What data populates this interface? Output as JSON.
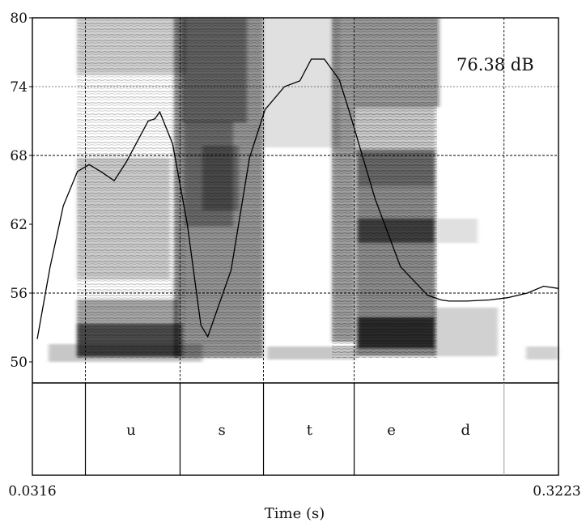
{
  "chart_data": {
    "type": "line",
    "series": [
      {
        "x": [
          0.0343,
          0.0413,
          0.0487,
          0.0565,
          0.063,
          0.0703,
          0.0768,
          0.0834,
          0.0885,
          0.0956,
          0.0993,
          0.102,
          0.1091,
          0.1172,
          0.1247,
          0.1285,
          0.1414,
          0.1516,
          0.1602,
          0.1709,
          0.1794,
          0.1857,
          0.1929,
          0.2012,
          0.2068,
          0.221,
          0.235,
          0.25,
          0.2575,
          0.2618,
          0.2715,
          0.284,
          0.2942,
          0.3051,
          0.3141,
          0.3223
        ],
        "values": [
          52.0,
          58.2,
          63.6,
          66.6,
          67.2,
          66.5,
          65.8,
          67.4,
          68.9,
          71.0,
          71.2,
          71.8,
          69.0,
          62.0,
          53.2,
          52.2,
          58.0,
          67.8,
          72.0,
          74.0,
          74.5,
          76.4,
          76.4,
          74.6,
          71.8,
          64.2,
          58.3,
          55.8,
          55.4,
          55.3,
          55.3,
          55.4,
          55.6,
          56.0,
          56.6,
          56.4
        ]
      }
    ],
    "ylim": [
      50,
      80
    ],
    "yticks": [
      "50",
      "56",
      "62",
      "68",
      "74",
      "80"
    ],
    "xlim": [
      0.0316,
      0.3223
    ],
    "xtick_left": "0.0316",
    "xtick_right": "0.3223",
    "xlabel": "Time (s)",
    "annotation": "76.38 dB",
    "hgrid_values": [
      56,
      68,
      74
    ],
    "segment_boundaries": [
      0.0316,
      0.0609,
      0.1132,
      0.1593,
      0.2094,
      0.2922,
      0.3223
    ],
    "segments": [
      {
        "label": "u",
        "start": 0.0609,
        "end": 0.1132
      },
      {
        "label": "s",
        "start": 0.1132,
        "end": 0.1593
      },
      {
        "label": "t",
        "start": 0.1593,
        "end": 0.2094
      },
      {
        "label": "e",
        "start": 0.2094,
        "end": 0.2922
      },
      {
        "label": "d",
        "start": 0.2094,
        "end": 0.2922
      }
    ],
    "label_positions_time": [
      0.0861,
      0.1363,
      0.1847,
      0.23,
      0.271
    ]
  }
}
